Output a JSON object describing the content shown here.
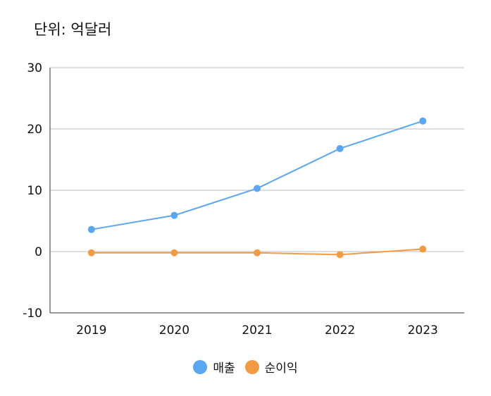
{
  "unit_label": "단위: 억달러",
  "colors": {
    "revenue": "#5aa6f0",
    "net_income": "#f39a45",
    "grid": "#bdbdbd",
    "axis": "#333333"
  },
  "chart_data": {
    "type": "line",
    "title": "",
    "xlabel": "",
    "ylabel": "",
    "categories": [
      "2019",
      "2020",
      "2021",
      "2022",
      "2023"
    ],
    "ylim": [
      -10,
      30
    ],
    "yticks": [
      -10,
      0,
      10,
      20,
      30
    ],
    "grid": true,
    "legend_position": "bottom",
    "series": [
      {
        "name": "매출",
        "color": "#5aa6f0",
        "values": [
          3.6,
          5.9,
          10.3,
          16.8,
          21.3
        ]
      },
      {
        "name": "순이익",
        "color": "#f39a45",
        "values": [
          -0.2,
          -0.2,
          -0.2,
          -0.5,
          0.4
        ]
      }
    ]
  }
}
